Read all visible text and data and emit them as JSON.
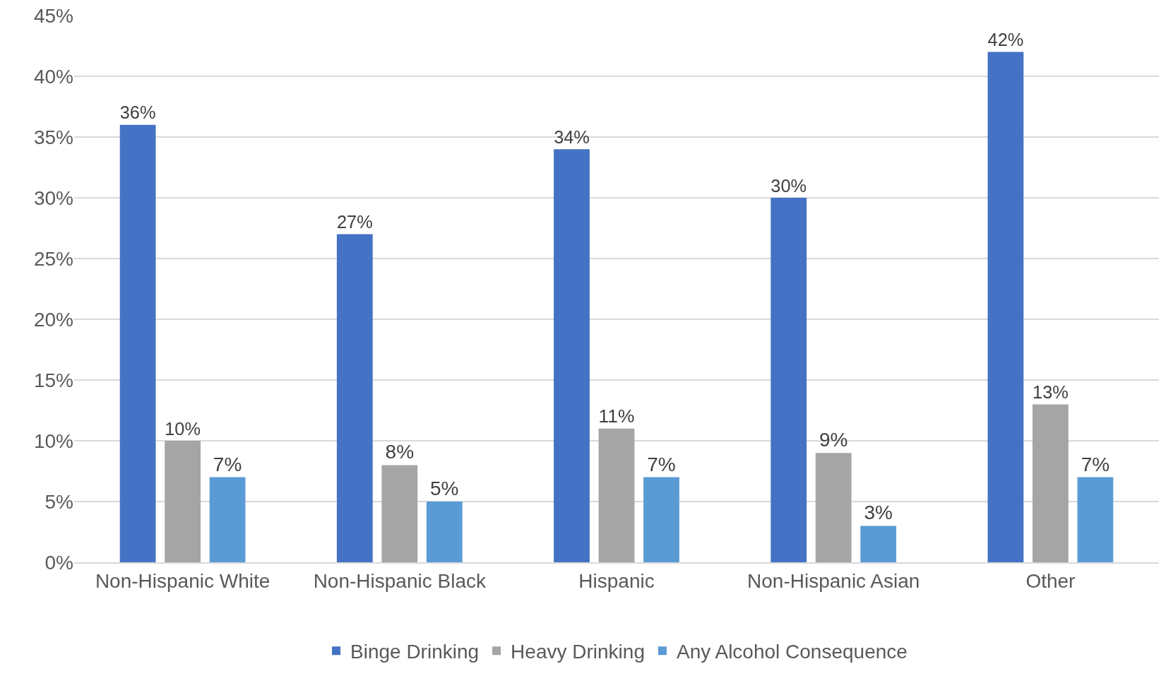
{
  "chart_data": {
    "type": "bar",
    "categories": [
      "Non-Hispanic White",
      "Non-Hispanic Black",
      "Hispanic",
      "Non-Hispanic Asian",
      "Other"
    ],
    "series": [
      {
        "name": "Binge Drinking",
        "color": "#4472c4",
        "values": [
          36,
          27,
          34,
          30,
          42
        ],
        "value_labels": [
          "36%",
          "27%",
          "34%",
          "30%",
          "42%"
        ]
      },
      {
        "name": "Heavy Drinking",
        "color": "#a5a5a5",
        "values": [
          10,
          8,
          11,
          9,
          13
        ],
        "value_labels": [
          "10%",
          "8%",
          "11%",
          "9%",
          "13%"
        ]
      },
      {
        "name": "Any Alcohol Consequence",
        "color": "#5b9bd5",
        "values": [
          7,
          5,
          7,
          3,
          7
        ],
        "value_labels": [
          "7%",
          "5%",
          "7%",
          "3%",
          "7%"
        ]
      }
    ],
    "ylim": [
      0,
      45
    ],
    "yticks": [
      {
        "value": 0,
        "label": "0%"
      },
      {
        "value": 5,
        "label": "5%"
      },
      {
        "value": 10,
        "label": "10%"
      },
      {
        "value": 15,
        "label": "15%"
      },
      {
        "value": 20,
        "label": "20%"
      },
      {
        "value": 25,
        "label": "25%"
      },
      {
        "value": 30,
        "label": "30%"
      },
      {
        "value": 35,
        "label": "35%"
      },
      {
        "value": 40,
        "label": "40%"
      },
      {
        "value": 45,
        "label": "45%"
      }
    ],
    "grid": "y",
    "legend": "bottom"
  }
}
